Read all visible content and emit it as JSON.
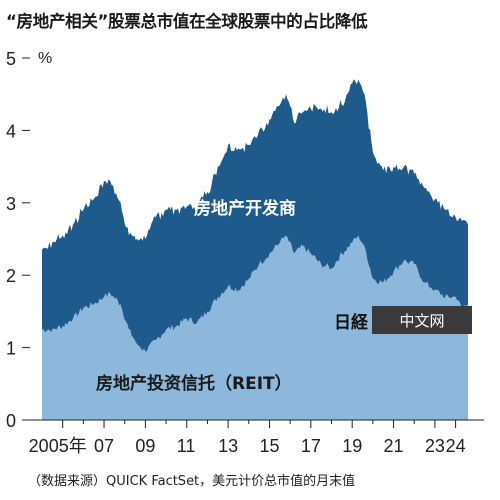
{
  "title": "“房地产相关”股票总市值在全球股票中的占比降低",
  "source": "（数据来源）QUICK FactSet，美元计价总市值的月末值",
  "watermark": {
    "logo": "日経",
    "text": "中文网"
  },
  "colors": {
    "developers": "#1f5a8c",
    "reit": "#8db8dc",
    "background": "#ffffff"
  },
  "chart_data": {
    "type": "area",
    "stacked": true,
    "unit": "%",
    "ylim": [
      0,
      5
    ],
    "yticks": [
      0,
      1,
      2,
      3,
      4,
      5
    ],
    "xlim": [
      2004.0,
      2024.6
    ],
    "xticks": [
      {
        "value": 2005,
        "label": "2005年"
      },
      {
        "value": 2007,
        "label": "07"
      },
      {
        "value": 2009,
        "label": "09"
      },
      {
        "value": 2011,
        "label": "11"
      },
      {
        "value": 2013,
        "label": "13"
      },
      {
        "value": 2015,
        "label": "15"
      },
      {
        "value": 2017,
        "label": "17"
      },
      {
        "value": 2019,
        "label": "19"
      },
      {
        "value": 2021,
        "label": "21"
      },
      {
        "value": 2023,
        "label": "23"
      },
      {
        "value": 2024,
        "label": "24"
      }
    ],
    "series": [
      {
        "name": "房地产投资信托（REIT）",
        "points": [
          [
            2004.0,
            1.25
          ],
          [
            2004.5,
            1.25
          ],
          [
            2005.0,
            1.3
          ],
          [
            2005.5,
            1.4
          ],
          [
            2006.0,
            1.55
          ],
          [
            2006.5,
            1.6
          ],
          [
            2007.0,
            1.7
          ],
          [
            2007.3,
            1.75
          ],
          [
            2007.8,
            1.6
          ],
          [
            2008.2,
            1.25
          ],
          [
            2008.6,
            1.05
          ],
          [
            2009.0,
            0.95
          ],
          [
            2009.5,
            1.1
          ],
          [
            2010.0,
            1.25
          ],
          [
            2010.5,
            1.3
          ],
          [
            2011.0,
            1.4
          ],
          [
            2011.5,
            1.35
          ],
          [
            2012.0,
            1.5
          ],
          [
            2012.5,
            1.7
          ],
          [
            2013.0,
            1.85
          ],
          [
            2013.5,
            1.8
          ],
          [
            2014.0,
            1.95
          ],
          [
            2014.5,
            2.15
          ],
          [
            2015.0,
            2.3
          ],
          [
            2015.5,
            2.45
          ],
          [
            2015.8,
            2.55
          ],
          [
            2016.2,
            2.3
          ],
          [
            2016.6,
            2.4
          ],
          [
            2017.0,
            2.3
          ],
          [
            2017.5,
            2.15
          ],
          [
            2018.0,
            2.1
          ],
          [
            2018.5,
            2.3
          ],
          [
            2019.0,
            2.45
          ],
          [
            2019.3,
            2.55
          ],
          [
            2019.6,
            2.4
          ],
          [
            2020.0,
            1.95
          ],
          [
            2020.5,
            1.9
          ],
          [
            2021.0,
            2.05
          ],
          [
            2021.5,
            2.2
          ],
          [
            2022.0,
            2.15
          ],
          [
            2022.5,
            1.9
          ],
          [
            2023.0,
            1.8
          ],
          [
            2023.5,
            1.7
          ],
          [
            2024.0,
            1.7
          ],
          [
            2024.3,
            1.55
          ],
          [
            2024.6,
            1.6
          ]
        ]
      },
      {
        "name": "房地产开发商",
        "points": [
          [
            2004.0,
            1.1
          ],
          [
            2004.5,
            1.2
          ],
          [
            2005.0,
            1.25
          ],
          [
            2005.5,
            1.3
          ],
          [
            2006.0,
            1.35
          ],
          [
            2006.5,
            1.45
          ],
          [
            2007.0,
            1.6
          ],
          [
            2007.3,
            1.55
          ],
          [
            2007.8,
            1.4
          ],
          [
            2008.2,
            1.3
          ],
          [
            2008.6,
            1.45
          ],
          [
            2009.0,
            1.55
          ],
          [
            2009.5,
            1.7
          ],
          [
            2010.0,
            1.65
          ],
          [
            2010.5,
            1.6
          ],
          [
            2011.0,
            1.55
          ],
          [
            2011.5,
            1.6
          ],
          [
            2012.0,
            1.65
          ],
          [
            2012.5,
            1.8
          ],
          [
            2013.0,
            1.95
          ],
          [
            2013.5,
            1.95
          ],
          [
            2014.0,
            1.85
          ],
          [
            2014.5,
            1.85
          ],
          [
            2015.0,
            1.85
          ],
          [
            2015.5,
            1.9
          ],
          [
            2015.8,
            1.95
          ],
          [
            2016.2,
            1.8
          ],
          [
            2016.6,
            1.85
          ],
          [
            2017.0,
            2.0
          ],
          [
            2017.5,
            2.15
          ],
          [
            2018.0,
            2.15
          ],
          [
            2018.5,
            2.05
          ],
          [
            2019.0,
            2.2
          ],
          [
            2019.3,
            2.15
          ],
          [
            2019.6,
            2.1
          ],
          [
            2020.0,
            1.75
          ],
          [
            2020.5,
            1.55
          ],
          [
            2021.0,
            1.45
          ],
          [
            2021.5,
            1.3
          ],
          [
            2022.0,
            1.25
          ],
          [
            2022.5,
            1.3
          ],
          [
            2023.0,
            1.25
          ],
          [
            2023.5,
            1.2
          ],
          [
            2024.0,
            1.1
          ],
          [
            2024.3,
            1.2
          ],
          [
            2024.6,
            1.1
          ]
        ]
      }
    ]
  }
}
